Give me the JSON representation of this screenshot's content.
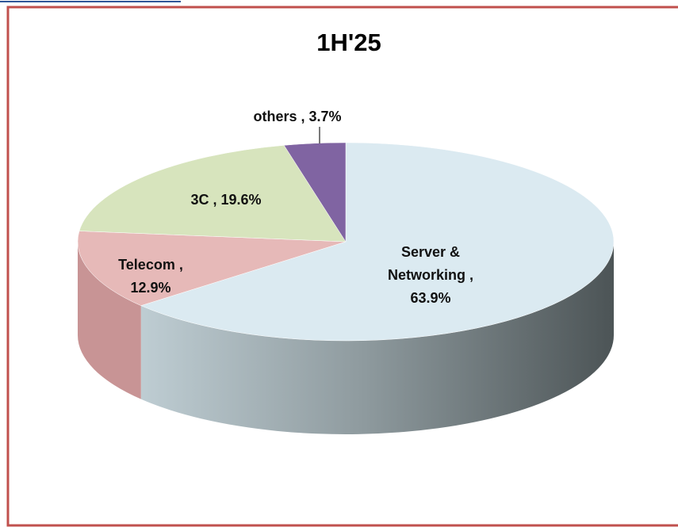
{
  "chart_data": {
    "type": "pie3d",
    "title": "1H'25",
    "categories": [
      "Server & Networking ,",
      "Telecom ,",
      "3C ,",
      "others ,"
    ],
    "values": [
      63.9,
      12.9,
      19.6,
      3.7
    ],
    "value_labels": [
      "63.9%",
      "12.9%",
      "19.6%",
      "3.7%"
    ],
    "colors": [
      "#dbeaf1",
      "#e6b9b8",
      "#d7e4bd",
      "#8064a2"
    ]
  }
}
